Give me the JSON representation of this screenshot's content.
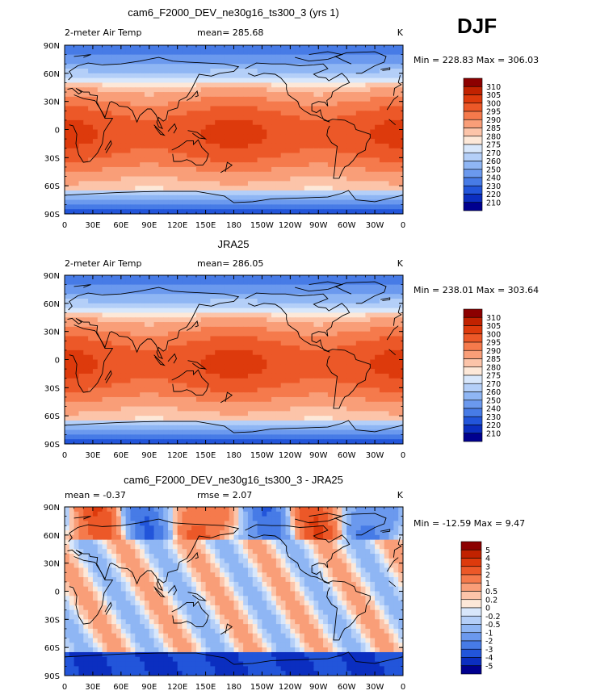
{
  "season_label": "DJF",
  "chart_data": [
    {
      "type": "heatmap",
      "title": "cam6_F2000_DEV_ne30g16_ts300_3 (yrs 1)",
      "left_label": "2-meter Air Temp",
      "stats_text": "mean= 285.68",
      "units": "K",
      "minmax_text": "Min = 228.83 Max = 306.03",
      "min": 228.83,
      "max": 306.03,
      "field": "temperature",
      "x_ticks": [
        "0",
        "30E",
        "60E",
        "90E",
        "120E",
        "150E",
        "180",
        "150W",
        "120W",
        "90W",
        "60W",
        "30W",
        "0"
      ],
      "y_ticks": [
        "90N",
        "60N",
        "30N",
        "0",
        "30S",
        "60S",
        "90S"
      ],
      "levels": [
        "310",
        "305",
        "300",
        "295",
        "290",
        "285",
        "280",
        "275",
        "270",
        "260",
        "250",
        "240",
        "230",
        "220",
        "210"
      ],
      "colors": [
        "#8c0000",
        "#c12200",
        "#dd3a0c",
        "#ec5828",
        "#f57a4c",
        "#f99e78",
        "#fcc4a9",
        "#fde8d8",
        "#d8e7fb",
        "#b4cff8",
        "#8fb6f4",
        "#6b99ee",
        "#477be6",
        "#2255da",
        "#0b2ec0",
        "#00008f"
      ]
    },
    {
      "type": "heatmap",
      "title": "JRA25",
      "left_label": "2-meter Air Temp",
      "stats_text": "mean= 286.05",
      "units": "K",
      "minmax_text": "Min = 238.01 Max = 303.64",
      "min": 238.01,
      "max": 303.64,
      "field": "temperature",
      "x_ticks": [
        "0",
        "30E",
        "60E",
        "90E",
        "120E",
        "150E",
        "180",
        "150W",
        "120W",
        "90W",
        "60W",
        "30W",
        "0"
      ],
      "y_ticks": [
        "90N",
        "60N",
        "30N",
        "0",
        "30S",
        "60S",
        "90S"
      ],
      "levels": [
        "310",
        "305",
        "300",
        "295",
        "290",
        "285",
        "280",
        "275",
        "270",
        "260",
        "250",
        "240",
        "230",
        "220",
        "210"
      ],
      "colors": [
        "#8c0000",
        "#c12200",
        "#dd3a0c",
        "#ec5828",
        "#f57a4c",
        "#f99e78",
        "#fcc4a9",
        "#fde8d8",
        "#d8e7fb",
        "#b4cff8",
        "#8fb6f4",
        "#6b99ee",
        "#477be6",
        "#2255da",
        "#0b2ec0",
        "#00008f"
      ]
    },
    {
      "type": "heatmap",
      "title": "cam6_F2000_DEV_ne30g16_ts300_3 - JRA25",
      "left_label": "mean =   -0.37",
      "stats_text": "rmse =    2.07",
      "units": "K",
      "minmax_text": "Min = -12.59 Max =   9.47",
      "min": -12.59,
      "max": 9.47,
      "field": "difference",
      "x_ticks": [
        "0",
        "30E",
        "60E",
        "90E",
        "120E",
        "150E",
        "180",
        "150W",
        "120W",
        "90W",
        "60W",
        "30W",
        "0"
      ],
      "y_ticks": [
        "90N",
        "60N",
        "30N",
        "0",
        "30S",
        "60S",
        "90S"
      ],
      "levels": [
        "5",
        "4",
        "3",
        "2",
        "1",
        "0.5",
        "0.2",
        "0",
        "-0.2",
        "-0.5",
        "-1",
        "-2",
        "-3",
        "-4",
        "-5"
      ],
      "colors": [
        "#8c0000",
        "#c12200",
        "#dd3a0c",
        "#ec5828",
        "#f57a4c",
        "#f99e78",
        "#fcc4a9",
        "#fde8d8",
        "#d8e7fb",
        "#b4cff8",
        "#8fb6f4",
        "#6b99ee",
        "#477be6",
        "#2255da",
        "#0b2ec0",
        "#00008f"
      ]
    }
  ]
}
